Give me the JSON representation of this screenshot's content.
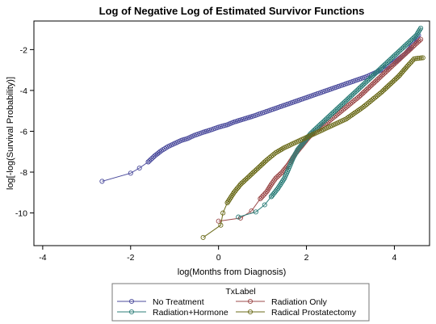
{
  "chart_data": {
    "type": "scatter",
    "title": "Log of Negative Log of Estimated Survivor Functions",
    "xlabel": "log(Months from Diagnosis)",
    "ylabel": "log[-log(Survival Probability)]",
    "xlim": [
      -4.2,
      4.8
    ],
    "ylim": [
      -11.6,
      -0.6
    ],
    "xticks": [
      -4,
      -2,
      0,
      2,
      4
    ],
    "yticks": [
      -10,
      -8,
      -6,
      -4,
      -2
    ],
    "xtick_labels": [
      "-4",
      "-2",
      "0",
      "2",
      "4"
    ],
    "ytick_labels": [
      "-10",
      "-8",
      "-6",
      "-4",
      "-2"
    ],
    "grid": false,
    "legend": {
      "title": "TxLabel",
      "placement": "bottom",
      "entries": [
        "No Treatment",
        "Radiation Only",
        "Radiation+Hormone",
        "Radical Prostatectomy"
      ]
    },
    "series": [
      {
        "name": "No Treatment",
        "color": "#4B4B9C",
        "points": [
          [
            -2.65,
            -8.45
          ],
          [
            -2.0,
            -8.05
          ],
          [
            -1.8,
            -7.8
          ],
          [
            -1.6,
            -7.5
          ],
          [
            -1.45,
            -7.2
          ],
          [
            -1.3,
            -6.95
          ],
          [
            -1.15,
            -6.75
          ],
          [
            -1.0,
            -6.6
          ],
          [
            -0.85,
            -6.45
          ],
          [
            -0.7,
            -6.35
          ],
          [
            -0.55,
            -6.2
          ],
          [
            -0.35,
            -6.05
          ],
          [
            -0.2,
            -5.95
          ],
          [
            0.0,
            -5.8
          ],
          [
            0.2,
            -5.68
          ],
          [
            0.35,
            -5.55
          ],
          [
            0.5,
            -5.45
          ],
          [
            0.65,
            -5.35
          ],
          [
            0.8,
            -5.25
          ],
          [
            1.0,
            -5.1
          ],
          [
            1.2,
            -4.95
          ],
          [
            1.4,
            -4.8
          ],
          [
            1.6,
            -4.65
          ],
          [
            1.8,
            -4.5
          ],
          [
            2.0,
            -4.35
          ],
          [
            2.2,
            -4.2
          ],
          [
            2.4,
            -4.05
          ],
          [
            2.6,
            -3.9
          ],
          [
            2.8,
            -3.75
          ],
          [
            3.0,
            -3.6
          ],
          [
            3.2,
            -3.45
          ],
          [
            3.4,
            -3.3
          ],
          [
            3.6,
            -3.1
          ],
          [
            3.8,
            -2.9
          ],
          [
            3.95,
            -2.7
          ],
          [
            4.1,
            -2.45
          ],
          [
            4.25,
            -2.2
          ],
          [
            4.35,
            -1.95
          ],
          [
            4.45,
            -1.65
          ],
          [
            4.55,
            -1.3
          ]
        ]
      },
      {
        "name": "Radiation Only",
        "color": "#9C4B4B",
        "points": [
          [
            0.0,
            -10.4
          ],
          [
            0.5,
            -10.25
          ],
          [
            0.75,
            -9.9
          ],
          [
            0.95,
            -9.3
          ],
          [
            1.1,
            -8.95
          ],
          [
            1.2,
            -8.6
          ],
          [
            1.3,
            -8.3
          ],
          [
            1.45,
            -8.0
          ],
          [
            1.6,
            -7.6
          ],
          [
            1.75,
            -7.1
          ],
          [
            1.9,
            -6.7
          ],
          [
            2.05,
            -6.3
          ],
          [
            2.2,
            -6.0
          ],
          [
            2.4,
            -5.7
          ],
          [
            2.6,
            -5.35
          ],
          [
            2.8,
            -5.0
          ],
          [
            3.0,
            -4.65
          ],
          [
            3.2,
            -4.3
          ],
          [
            3.4,
            -3.9
          ],
          [
            3.6,
            -3.5
          ],
          [
            3.8,
            -3.1
          ],
          [
            4.0,
            -2.7
          ],
          [
            4.2,
            -2.3
          ],
          [
            4.4,
            -1.9
          ],
          [
            4.6,
            -1.5
          ]
        ]
      },
      {
        "name": "Radiation+Hormone",
        "color": "#2E7F7A",
        "points": [
          [
            0.45,
            -10.2
          ],
          [
            0.85,
            -9.95
          ],
          [
            1.05,
            -9.6
          ],
          [
            1.2,
            -9.2
          ],
          [
            1.35,
            -8.8
          ],
          [
            1.5,
            -8.3
          ],
          [
            1.6,
            -7.8
          ],
          [
            1.7,
            -7.3
          ],
          [
            1.8,
            -6.9
          ],
          [
            1.95,
            -6.5
          ],
          [
            2.1,
            -6.1
          ],
          [
            2.3,
            -5.7
          ],
          [
            2.5,
            -5.3
          ],
          [
            2.7,
            -4.9
          ],
          [
            2.9,
            -4.5
          ],
          [
            3.1,
            -4.1
          ],
          [
            3.3,
            -3.7
          ],
          [
            3.5,
            -3.3
          ],
          [
            3.7,
            -2.9
          ],
          [
            3.9,
            -2.5
          ],
          [
            4.1,
            -2.1
          ],
          [
            4.3,
            -1.7
          ],
          [
            4.5,
            -1.3
          ],
          [
            4.6,
            -0.95
          ]
        ]
      },
      {
        "name": "Radical Prostatectomy",
        "color": "#6B6B1A",
        "points": [
          [
            -0.35,
            -11.2
          ],
          [
            0.05,
            -10.6
          ],
          [
            0.1,
            -10.0
          ],
          [
            0.2,
            -9.5
          ],
          [
            0.35,
            -9.0
          ],
          [
            0.5,
            -8.6
          ],
          [
            0.7,
            -8.2
          ],
          [
            0.9,
            -7.8
          ],
          [
            1.1,
            -7.4
          ],
          [
            1.3,
            -7.05
          ],
          [
            1.5,
            -6.8
          ],
          [
            1.7,
            -6.6
          ],
          [
            1.9,
            -6.4
          ],
          [
            2.1,
            -6.2
          ],
          [
            2.3,
            -6.0
          ],
          [
            2.5,
            -5.8
          ],
          [
            2.7,
            -5.6
          ],
          [
            2.9,
            -5.4
          ],
          [
            3.1,
            -5.1
          ],
          [
            3.3,
            -4.8
          ],
          [
            3.5,
            -4.45
          ],
          [
            3.7,
            -4.1
          ],
          [
            3.9,
            -3.7
          ],
          [
            4.1,
            -3.3
          ],
          [
            4.3,
            -2.8
          ],
          [
            4.45,
            -2.45
          ],
          [
            4.65,
            -2.4
          ]
        ]
      }
    ]
  }
}
